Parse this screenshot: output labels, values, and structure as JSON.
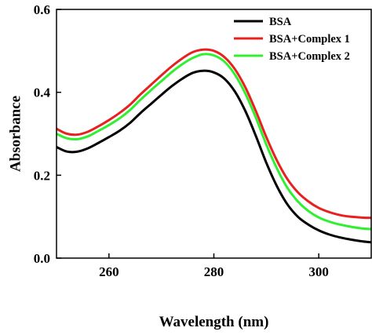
{
  "chart_data": {
    "type": "line",
    "title": "",
    "xlabel": "Wavelength (nm)",
    "ylabel": "Absorbance",
    "xlim": [
      250,
      310
    ],
    "ylim": [
      0.0,
      0.6
    ],
    "x_ticks": [
      260,
      280,
      300
    ],
    "y_ticks": [
      0.0,
      0.2,
      0.4,
      0.6
    ],
    "x_tick_labels": [
      "260",
      "280",
      "300"
    ],
    "y_tick_labels": [
      "0.0",
      "0.2",
      "0.4",
      "0.6"
    ],
    "grid": false,
    "legend_position": "top-right",
    "x": [
      250,
      252,
      254,
      256,
      258,
      260,
      262,
      264,
      266,
      268,
      270,
      272,
      274,
      276,
      278,
      280,
      282,
      284,
      286,
      288,
      290,
      292,
      294,
      296,
      298,
      300,
      302,
      304,
      306,
      308,
      310
    ],
    "series": [
      {
        "name": "BSA",
        "color": "#000000",
        "values": [
          0.268,
          0.257,
          0.257,
          0.265,
          0.278,
          0.292,
          0.307,
          0.326,
          0.35,
          0.372,
          0.394,
          0.415,
          0.433,
          0.447,
          0.452,
          0.448,
          0.433,
          0.402,
          0.355,
          0.295,
          0.23,
          0.174,
          0.13,
          0.1,
          0.081,
          0.067,
          0.057,
          0.05,
          0.045,
          0.041,
          0.038
        ]
      },
      {
        "name": "BSA+Complex 1",
        "color": "#e8201e",
        "values": [
          0.312,
          0.3,
          0.298,
          0.305,
          0.318,
          0.333,
          0.35,
          0.37,
          0.395,
          0.418,
          0.441,
          0.463,
          0.482,
          0.497,
          0.503,
          0.5,
          0.485,
          0.456,
          0.412,
          0.355,
          0.292,
          0.236,
          0.191,
          0.159,
          0.137,
          0.121,
          0.111,
          0.104,
          0.1,
          0.098,
          0.097
        ]
      },
      {
        "name": "BSA+Complex 2",
        "color": "#2ef02e",
        "values": [
          0.3,
          0.289,
          0.287,
          0.294,
          0.307,
          0.321,
          0.337,
          0.357,
          0.382,
          0.405,
          0.427,
          0.449,
          0.468,
          0.483,
          0.492,
          0.489,
          0.474,
          0.443,
          0.397,
          0.339,
          0.274,
          0.217,
          0.17,
          0.137,
          0.114,
          0.098,
          0.088,
          0.081,
          0.076,
          0.072,
          0.07
        ]
      }
    ]
  }
}
